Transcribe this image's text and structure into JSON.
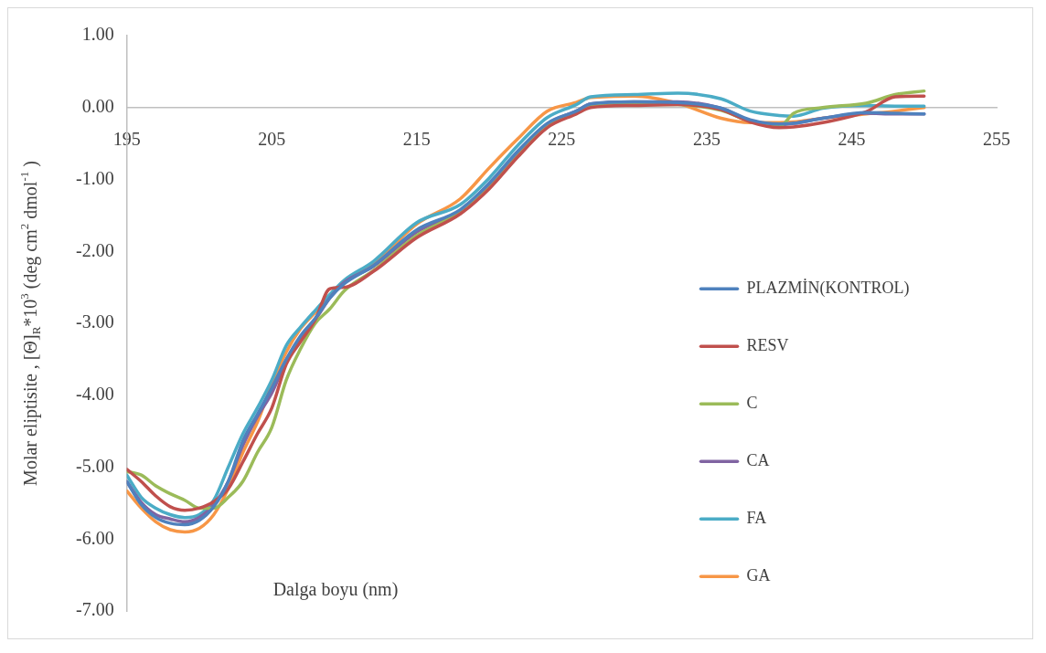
{
  "chart_data": {
    "type": "line",
    "xlabel": "Dalga boyu (nm)",
    "ylabel": "Molar eliptisite , [Θ]$_{R}$*10$^{3}$ (deg cm$^{2}$ dmol$^{-1}$ )",
    "x": [
      195,
      196,
      197,
      198,
      199,
      200,
      201,
      202,
      203,
      204,
      205,
      206,
      207,
      208,
      209,
      210,
      212,
      215,
      218,
      220,
      222,
      224,
      226,
      227,
      230,
      233,
      236,
      238,
      240,
      241,
      243,
      246,
      248,
      250
    ],
    "series": [
      {
        "name": "PLAZMİN(KONTROL)",
        "color": "#4f81bd",
        "values": [
          -5.2,
          -5.52,
          -5.7,
          -5.78,
          -5.8,
          -5.74,
          -5.55,
          -5.2,
          -4.64,
          -4.27,
          -3.9,
          -3.5,
          -3.17,
          -2.93,
          -2.65,
          -2.45,
          -2.2,
          -1.7,
          -1.42,
          -1.05,
          -0.6,
          -0.22,
          -0.05,
          0.05,
          0.08,
          0.07,
          -0.01,
          -0.17,
          -0.23,
          -0.22,
          -0.15,
          -0.07,
          -0.08,
          -0.09
        ]
      },
      {
        "name": "RESV",
        "color": "#c0504d",
        "values": [
          -5.03,
          -5.2,
          -5.4,
          -5.55,
          -5.6,
          -5.57,
          -5.48,
          -5.3,
          -4.93,
          -4.54,
          -4.18,
          -3.57,
          -3.25,
          -2.95,
          -2.52,
          -2.5,
          -2.28,
          -1.81,
          -1.48,
          -1.13,
          -0.68,
          -0.28,
          -0.09,
          0.0,
          0.03,
          0.04,
          -0.03,
          -0.2,
          -0.28,
          -0.27,
          -0.21,
          -0.06,
          0.15,
          0.16
        ]
      },
      {
        "name": "C",
        "color": "#9bbb59",
        "values": [
          -5.06,
          -5.11,
          -5.26,
          -5.37,
          -5.46,
          -5.57,
          -5.57,
          -5.42,
          -5.2,
          -4.8,
          -4.45,
          -3.79,
          -3.35,
          -3.0,
          -2.8,
          -2.55,
          -2.27,
          -1.78,
          -1.46,
          -1.12,
          -0.67,
          -0.27,
          -0.07,
          0.02,
          0.04,
          0.04,
          -0.04,
          -0.19,
          -0.27,
          -0.08,
          0.0,
          0.06,
          0.18,
          0.23
        ]
      },
      {
        "name": "CA",
        "color": "#8064a2",
        "values": [
          -5.2,
          -5.49,
          -5.66,
          -5.72,
          -5.76,
          -5.7,
          -5.52,
          -5.2,
          -4.7,
          -4.3,
          -3.97,
          -3.53,
          -3.2,
          -2.95,
          -2.65,
          -2.43,
          -2.21,
          -1.73,
          -1.44,
          -1.07,
          -0.63,
          -0.23,
          -0.05,
          0.05,
          0.08,
          0.08,
          -0.01,
          -0.18,
          -0.24,
          -0.22,
          -0.15,
          -0.08,
          -0.09,
          -0.09
        ]
      },
      {
        "name": "FA",
        "color": "#4bacc6",
        "values": [
          -5.11,
          -5.42,
          -5.57,
          -5.66,
          -5.7,
          -5.66,
          -5.46,
          -5.0,
          -4.54,
          -4.18,
          -3.79,
          -3.31,
          -3.05,
          -2.82,
          -2.6,
          -2.4,
          -2.14,
          -1.6,
          -1.35,
          -0.98,
          -0.52,
          -0.14,
          0.04,
          0.15,
          0.18,
          0.2,
          0.12,
          -0.05,
          -0.11,
          -0.12,
          -0.01,
          0.03,
          0.02,
          0.02
        ]
      },
      {
        "name": "GA",
        "color": "#f79646",
        "values": [
          -5.33,
          -5.57,
          -5.76,
          -5.87,
          -5.9,
          -5.85,
          -5.66,
          -5.3,
          -4.8,
          -4.38,
          -3.85,
          -3.4,
          -3.07,
          -2.85,
          -2.62,
          -2.42,
          -2.18,
          -1.62,
          -1.27,
          -0.84,
          -0.43,
          -0.05,
          0.07,
          0.14,
          0.16,
          0.06,
          -0.15,
          -0.21,
          -0.21,
          -0.2,
          -0.15,
          -0.09,
          -0.05,
          0.0
        ]
      }
    ],
    "xlim": [
      195,
      255
    ],
    "xticks": [
      195,
      205,
      215,
      225,
      235,
      245,
      255
    ],
    "ylim": [
      -7,
      1
    ],
    "yticks": [
      {
        "value": 1,
        "label": "1.00"
      },
      {
        "value": 0,
        "label": "0.00"
      },
      {
        "value": -1,
        "label": "-1.00"
      },
      {
        "value": -2,
        "label": "-2.00"
      },
      {
        "value": -3,
        "label": "-3.00"
      },
      {
        "value": -4,
        "label": "-4.00"
      },
      {
        "value": -5,
        "label": "-5.00"
      },
      {
        "value": -6,
        "label": "-6.00"
      },
      {
        "value": -7,
        "label": "-7.00"
      }
    ],
    "grid": false,
    "legend": "right",
    "marker": "none",
    "line_style": "solid"
  }
}
